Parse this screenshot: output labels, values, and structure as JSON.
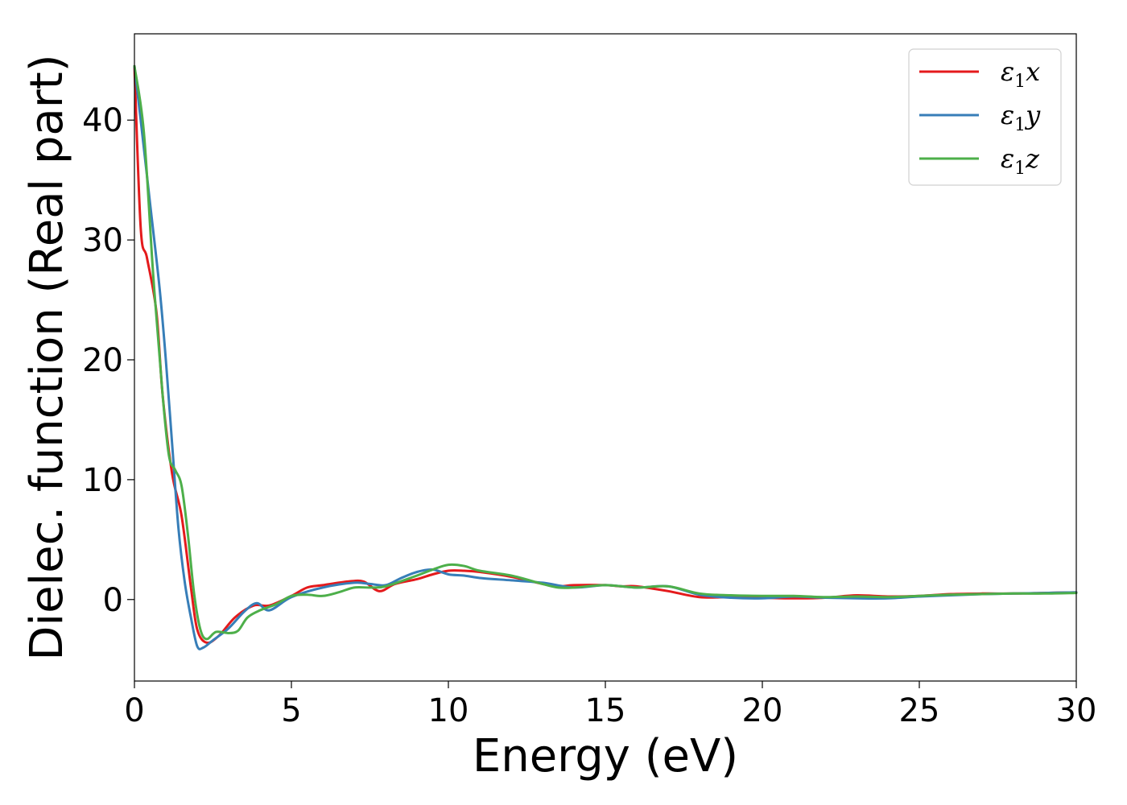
{
  "chart_data": {
    "type": "line",
    "title": "",
    "xlabel": "Energy (eV)",
    "ylabel": "Dielec. function (Real part)",
    "xlim": [
      0,
      30
    ],
    "ylim": [
      -6.8,
      47.2
    ],
    "xticks": [
      0,
      5,
      10,
      15,
      20,
      25,
      30
    ],
    "yticks": [
      0,
      10,
      20,
      30,
      40
    ],
    "legend_position": "top-right",
    "grid": false,
    "series": [
      {
        "name": "ε1x",
        "legend_main": "ε",
        "legend_sub": "1",
        "legend_suffix": "x",
        "color": "#e41a1c",
        "x": [
          0,
          0.2,
          0.4,
          0.7,
          0.9,
          1.2,
          1.5,
          1.8,
          2.0,
          2.3,
          2.7,
          3.2,
          3.8,
          4.3,
          5.0,
          5.5,
          6.0,
          6.8,
          7.3,
          7.8,
          8.3,
          9.0,
          9.5,
          10.0,
          10.5,
          11.0,
          12.0,
          13.0,
          13.5,
          14.0,
          15.0,
          15.5,
          16.0,
          17.0,
          18.0,
          19.0,
          20.0,
          21.0,
          22.0,
          23.0,
          24.0,
          25.0,
          26.0,
          27.0,
          28.0,
          29.0,
          30.0
        ],
        "y": [
          44.5,
          31,
          28.5,
          24,
          17,
          10.5,
          7,
          1.0,
          -2.5,
          -3.6,
          -3.0,
          -1.5,
          -0.5,
          -0.5,
          0.3,
          1.0,
          1.2,
          1.5,
          1.5,
          0.7,
          1.3,
          1.7,
          2.1,
          2.4,
          2.4,
          2.3,
          1.9,
          1.3,
          1.1,
          1.2,
          1.2,
          1.1,
          1.1,
          0.7,
          0.2,
          0.2,
          0.15,
          0.1,
          0.15,
          0.35,
          0.25,
          0.3,
          0.45,
          0.5,
          0.5,
          0.55,
          0.6
        ]
      },
      {
        "name": "ε1y",
        "legend_main": "ε",
        "legend_sub": "1",
        "legend_suffix": "y",
        "color": "#377eb8",
        "x": [
          0,
          0.2,
          0.5,
          0.8,
          1.0,
          1.2,
          1.4,
          1.6,
          1.8,
          2.0,
          2.2,
          2.5,
          3.0,
          3.5,
          3.9,
          4.3,
          5.0,
          6.0,
          7.0,
          7.5,
          8.0,
          8.5,
          9.0,
          9.5,
          10.0,
          10.5,
          11.0,
          12.0,
          13.0,
          14.0,
          15.0,
          16.0,
          17.0,
          18.0,
          19.0,
          20.0,
          21.0,
          22.0,
          23.0,
          24.0,
          25.0,
          26.0,
          27.0,
          28.0,
          29.0,
          30.0
        ],
        "y": [
          44.5,
          40,
          33,
          26,
          20,
          13,
          6,
          1.5,
          -1.5,
          -3.9,
          -4.0,
          -3.4,
          -2.4,
          -1.0,
          -0.3,
          -0.9,
          0.2,
          1.0,
          1.4,
          1.3,
          1.2,
          1.8,
          2.3,
          2.5,
          2.1,
          2.0,
          1.8,
          1.6,
          1.4,
          1.0,
          1.2,
          1.0,
          1.1,
          0.4,
          0.15,
          0.1,
          0.25,
          0.15,
          0.1,
          0.1,
          0.25,
          0.35,
          0.45,
          0.5,
          0.55,
          0.6
        ]
      },
      {
        "name": "ε1z",
        "legend_main": "ε",
        "legend_sub": "1",
        "legend_suffix": "z",
        "color": "#4daf4a",
        "x": [
          0,
          0.3,
          0.6,
          0.9,
          1.1,
          1.3,
          1.5,
          1.7,
          1.9,
          2.1,
          2.3,
          2.6,
          3.0,
          3.3,
          3.6,
          4.0,
          4.5,
          5.0,
          5.5,
          6.0,
          6.5,
          7.0,
          7.5,
          8.0,
          9.0,
          9.5,
          10.0,
          10.5,
          11.0,
          12.0,
          13.0,
          13.5,
          14.0,
          15.0,
          16.0,
          17.0,
          18.0,
          19.0,
          20.0,
          21.0,
          22.0,
          23.0,
          24.0,
          25.0,
          26.0,
          27.0,
          28.0,
          29.0,
          30.0
        ],
        "y": [
          44.5,
          39,
          27,
          17,
          12,
          10.8,
          9.5,
          5.5,
          0.5,
          -2.5,
          -3.3,
          -2.7,
          -2.8,
          -2.6,
          -1.5,
          -0.9,
          -0.4,
          0.3,
          0.4,
          0.3,
          0.6,
          1.0,
          1.0,
          1.1,
          2.0,
          2.5,
          2.9,
          2.8,
          2.4,
          2.0,
          1.3,
          1.0,
          1.0,
          1.2,
          1.0,
          1.1,
          0.5,
          0.35,
          0.3,
          0.3,
          0.2,
          0.25,
          0.2,
          0.3,
          0.4,
          0.45,
          0.5,
          0.5,
          0.55
        ]
      }
    ]
  }
}
